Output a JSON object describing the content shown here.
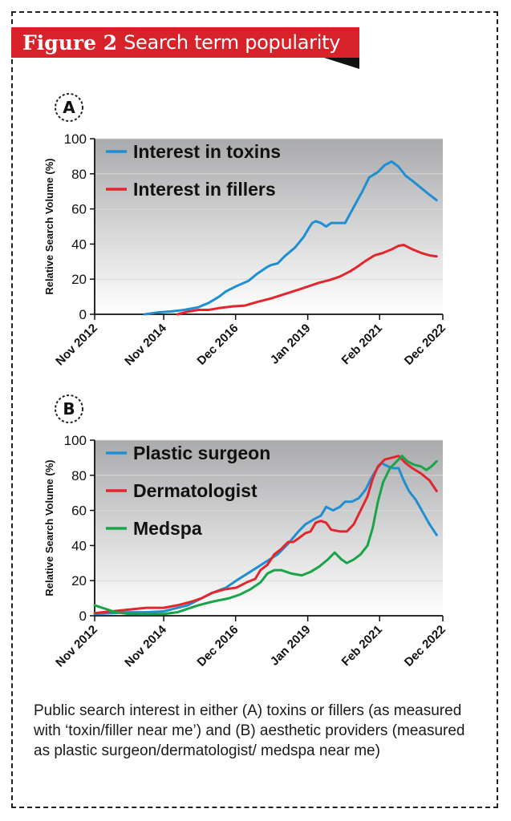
{
  "figure": {
    "label": "Figure 2",
    "title": "Search term popularity",
    "caption": "Public search interest in either (A) toxins or fillers (as measured with ‘toxin/filler near me’) and (B) aesthetic providers (measured as plastic surgeon/dermatologist/ medspa near me)"
  },
  "colors": {
    "banner": "#d8222a",
    "plot_bg_top": "#a9aaac",
    "plot_bg_bottom": "#ffffff",
    "blue": "#1f8fd1",
    "red": "#e3262d",
    "green": "#1aa44a"
  },
  "chart_data": [
    {
      "panel": "A",
      "type": "line",
      "ylabel": "Relative Search Volume (%)",
      "xlabel": "",
      "ylim": [
        0,
        100
      ],
      "yticks": [
        "0",
        "20",
        "40",
        "60",
        "80",
        "100"
      ],
      "xticks": [
        {
          "t": 0,
          "label": "Nov 2012"
        },
        {
          "t": 2,
          "label": "Nov 2014"
        },
        {
          "t": 4.08,
          "label": "Dec 2016"
        },
        {
          "t": 6.17,
          "label": "Jan 2019"
        },
        {
          "t": 8.25,
          "label": "Feb 2021"
        },
        {
          "t": 10.08,
          "label": "Dec 2022"
        }
      ],
      "xlim": [
        0,
        10.08
      ],
      "grid": true,
      "legend": "top-left",
      "series": [
        {
          "name": "Interest in toxins",
          "color": "blue",
          "points": [
            [
              1.45,
              0
            ],
            [
              1.8,
              1
            ],
            [
              2.2,
              1.6
            ],
            [
              2.6,
              2.5
            ],
            [
              3.0,
              4
            ],
            [
              3.3,
              6.5
            ],
            [
              3.6,
              10
            ],
            [
              3.8,
              13
            ],
            [
              4.1,
              16
            ],
            [
              4.45,
              19
            ],
            [
              4.7,
              23
            ],
            [
              5.0,
              27
            ],
            [
              5.1,
              28
            ],
            [
              5.3,
              29
            ],
            [
              5.5,
              33
            ],
            [
              5.8,
              38
            ],
            [
              6.05,
              44
            ],
            [
              6.2,
              49
            ],
            [
              6.3,
              52
            ],
            [
              6.4,
              53
            ],
            [
              6.55,
              52
            ],
            [
              6.7,
              50
            ],
            [
              6.85,
              52
            ],
            [
              7.05,
              52
            ],
            [
              7.25,
              52
            ],
            [
              7.5,
              61
            ],
            [
              7.75,
              70
            ],
            [
              7.95,
              78
            ],
            [
              8.2,
              81
            ],
            [
              8.4,
              85
            ],
            [
              8.6,
              87
            ],
            [
              8.8,
              84
            ],
            [
              9.0,
              79
            ],
            [
              9.2,
              76
            ],
            [
              9.45,
              72
            ],
            [
              9.7,
              68
            ],
            [
              9.9,
              65
            ]
          ]
        },
        {
          "name": "Interest in fillers",
          "color": "red",
          "points": [
            [
              2.4,
              0
            ],
            [
              2.7,
              1.5
            ],
            [
              3.0,
              2.5
            ],
            [
              3.3,
              2.5
            ],
            [
              3.6,
              3.5
            ],
            [
              4.0,
              4.5
            ],
            [
              4.35,
              5
            ],
            [
              4.7,
              7
            ],
            [
              5.1,
              9
            ],
            [
              5.5,
              11.5
            ],
            [
              5.9,
              14
            ],
            [
              6.2,
              16
            ],
            [
              6.5,
              18
            ],
            [
              6.8,
              19.5
            ],
            [
              7.1,
              21.5
            ],
            [
              7.4,
              24.5
            ],
            [
              7.6,
              27
            ],
            [
              7.85,
              30.5
            ],
            [
              8.1,
              33.5
            ],
            [
              8.35,
              35
            ],
            [
              8.6,
              37
            ],
            [
              8.8,
              39
            ],
            [
              8.95,
              39.5
            ],
            [
              9.2,
              37
            ],
            [
              9.45,
              35
            ],
            [
              9.7,
              33.5
            ],
            [
              9.9,
              33
            ]
          ]
        }
      ]
    },
    {
      "panel": "B",
      "type": "line",
      "ylabel": "Relative Search Volume (%)",
      "xlabel": "",
      "ylim": [
        0,
        100
      ],
      "yticks": [
        "0",
        "20",
        "40",
        "60",
        "80",
        "100"
      ],
      "xticks": [
        {
          "t": 0,
          "label": "Nov 2012"
        },
        {
          "t": 2,
          "label": "Nov 2014"
        },
        {
          "t": 4.08,
          "label": "Dec 2016"
        },
        {
          "t": 6.17,
          "label": "Jan 2019"
        },
        {
          "t": 8.25,
          "label": "Feb 2021"
        },
        {
          "t": 10.08,
          "label": "Dec 2022"
        }
      ],
      "xlim": [
        0,
        10.08
      ],
      "grid": true,
      "legend": "top-left",
      "series": [
        {
          "name": "Plastic surgeon",
          "color": "blue",
          "points": [
            [
              0,
              1
            ],
            [
              0.5,
              1.5
            ],
            [
              1.0,
              2
            ],
            [
              1.5,
              2
            ],
            [
              2.0,
              2.5
            ],
            [
              2.3,
              4
            ],
            [
              2.7,
              6
            ],
            [
              3.0,
              9
            ],
            [
              3.4,
              13
            ],
            [
              3.8,
              16
            ],
            [
              4.1,
              20
            ],
            [
              4.5,
              25
            ],
            [
              4.9,
              30
            ],
            [
              5.3,
              35
            ],
            [
              5.6,
              41
            ],
            [
              5.9,
              48
            ],
            [
              6.1,
              52
            ],
            [
              6.35,
              55
            ],
            [
              6.55,
              57
            ],
            [
              6.7,
              62
            ],
            [
              6.9,
              60
            ],
            [
              7.1,
              62
            ],
            [
              7.25,
              65
            ],
            [
              7.45,
              65
            ],
            [
              7.65,
              67
            ],
            [
              7.85,
              72
            ],
            [
              8.0,
              78
            ],
            [
              8.15,
              83
            ],
            [
              8.3,
              87
            ],
            [
              8.5,
              85
            ],
            [
              8.65,
              84
            ],
            [
              8.8,
              84
            ],
            [
              8.95,
              77
            ],
            [
              9.1,
              71
            ],
            [
              9.3,
              66
            ],
            [
              9.5,
              59
            ],
            [
              9.7,
              52
            ],
            [
              9.9,
              46
            ]
          ]
        },
        {
          "name": "Dermatologist",
          "color": "red",
          "points": [
            [
              0,
              1.5
            ],
            [
              0.5,
              2.5
            ],
            [
              1.0,
              3.5
            ],
            [
              1.5,
              4.5
            ],
            [
              2.0,
              4.5
            ],
            [
              2.4,
              6
            ],
            [
              2.8,
              8
            ],
            [
              3.1,
              10
            ],
            [
              3.4,
              13
            ],
            [
              3.75,
              15
            ],
            [
              4.1,
              16
            ],
            [
              4.4,
              19
            ],
            [
              4.65,
              21
            ],
            [
              4.8,
              26
            ],
            [
              5.0,
              29
            ],
            [
              5.2,
              35
            ],
            [
              5.4,
              38
            ],
            [
              5.6,
              42
            ],
            [
              5.75,
              42
            ],
            [
              5.9,
              44
            ],
            [
              6.1,
              47
            ],
            [
              6.25,
              48
            ],
            [
              6.4,
              53
            ],
            [
              6.55,
              54
            ],
            [
              6.7,
              53
            ],
            [
              6.85,
              49
            ],
            [
              7.1,
              48
            ],
            [
              7.3,
              48
            ],
            [
              7.5,
              52
            ],
            [
              7.7,
              60
            ],
            [
              7.9,
              68
            ],
            [
              8.05,
              78
            ],
            [
              8.2,
              85
            ],
            [
              8.4,
              89
            ],
            [
              8.6,
              90
            ],
            [
              8.8,
              91
            ],
            [
              9.0,
              87
            ],
            [
              9.2,
              84
            ],
            [
              9.45,
              81
            ],
            [
              9.7,
              77
            ],
            [
              9.9,
              71
            ]
          ]
        },
        {
          "name": "Medspa",
          "color": "green",
          "points": [
            [
              0,
              6
            ],
            [
              0.3,
              4
            ],
            [
              0.6,
              2
            ],
            [
              1.0,
              1
            ],
            [
              1.5,
              1
            ],
            [
              2.0,
              1
            ],
            [
              2.4,
              2
            ],
            [
              2.7,
              4
            ],
            [
              3.0,
              6
            ],
            [
              3.4,
              8
            ],
            [
              3.9,
              10
            ],
            [
              4.2,
              12
            ],
            [
              4.5,
              15
            ],
            [
              4.8,
              19
            ],
            [
              5.0,
              24
            ],
            [
              5.2,
              26
            ],
            [
              5.4,
              26
            ],
            [
              5.7,
              24
            ],
            [
              6.0,
              23
            ],
            [
              6.25,
              25
            ],
            [
              6.5,
              28
            ],
            [
              6.75,
              32
            ],
            [
              6.95,
              36
            ],
            [
              7.15,
              32
            ],
            [
              7.3,
              30
            ],
            [
              7.5,
              32
            ],
            [
              7.7,
              35
            ],
            [
              7.9,
              40
            ],
            [
              8.05,
              50
            ],
            [
              8.2,
              65
            ],
            [
              8.35,
              76
            ],
            [
              8.55,
              84
            ],
            [
              8.75,
              88
            ],
            [
              8.9,
              91
            ],
            [
              9.05,
              88
            ],
            [
              9.25,
              86
            ],
            [
              9.45,
              85
            ],
            [
              9.6,
              83
            ],
            [
              9.75,
              85
            ],
            [
              9.9,
              88
            ]
          ]
        }
      ]
    }
  ]
}
